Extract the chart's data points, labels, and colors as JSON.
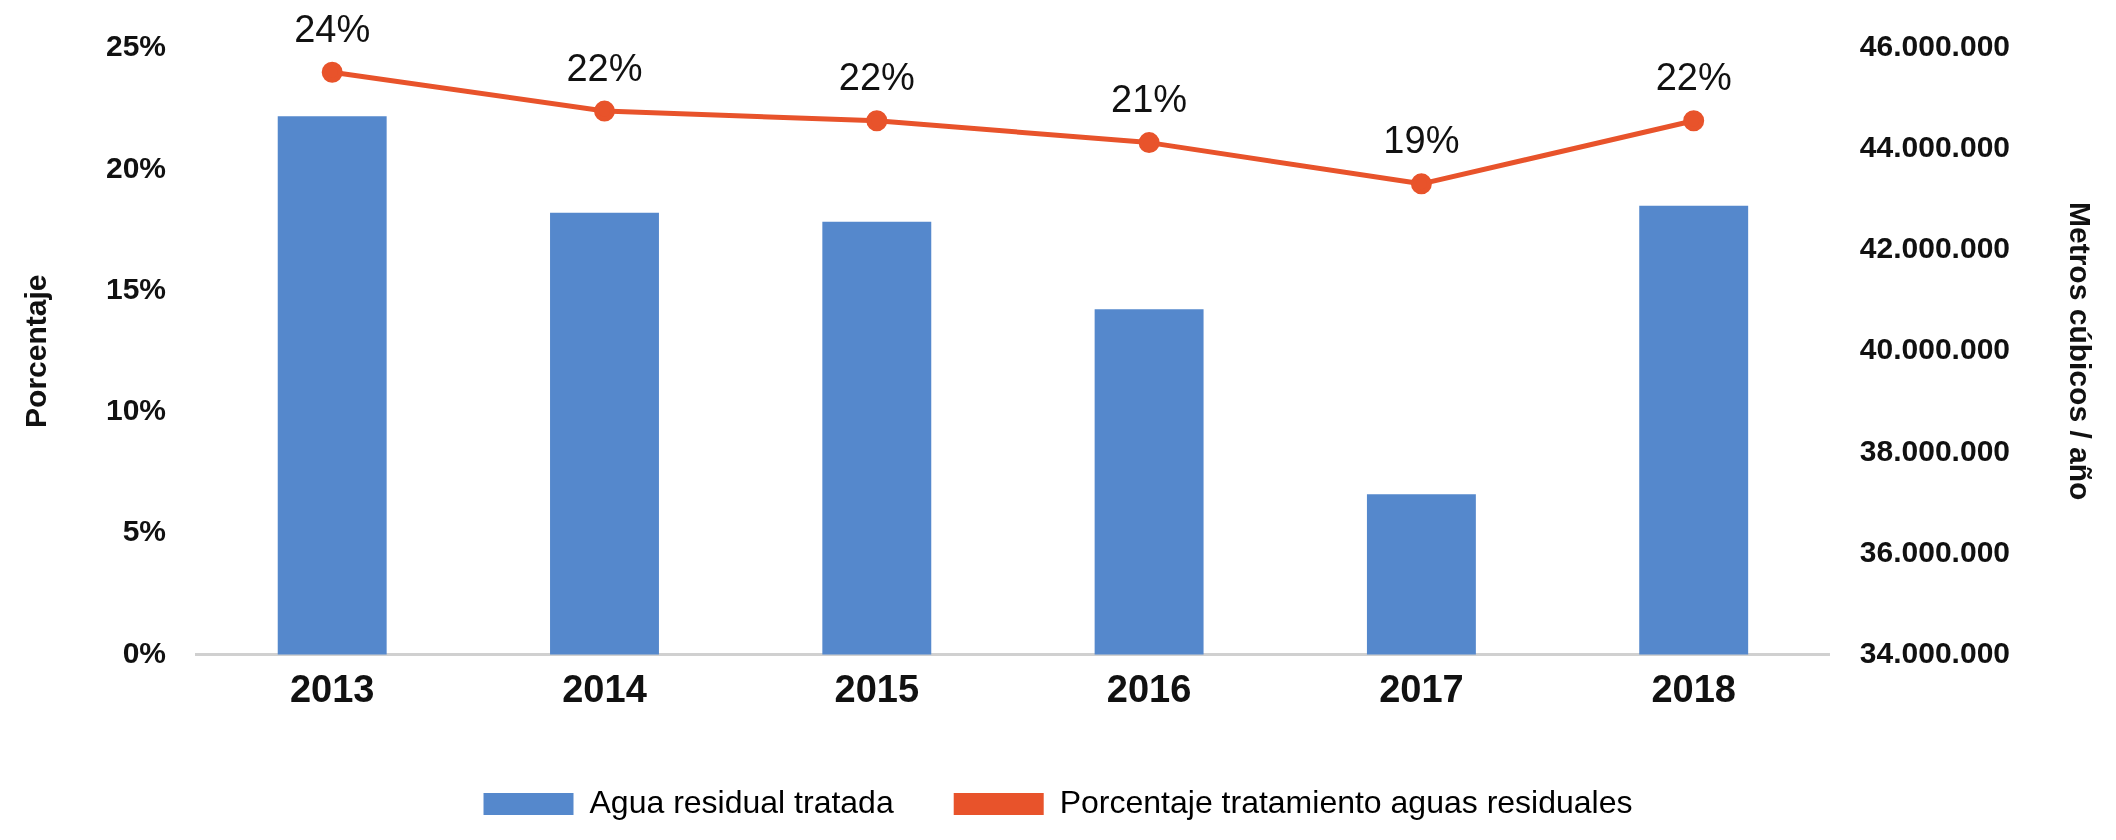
{
  "chart_data": {
    "type": "bar",
    "categories": [
      "2013",
      "2014",
      "2015",
      "2016",
      "2017",
      "2018"
    ],
    "series": [
      {
        "name": "Agua residual tratada",
        "axis": "y2",
        "color": "#5588cc",
        "values": [
          44650000,
          42740000,
          42560000,
          40830000,
          37170000,
          42880000
        ]
      },
      {
        "name": "Porcentaje tratamiento aguas residuales",
        "type": "line",
        "axis": "y",
        "color": "#e8532b",
        "marker": "circle",
        "values": [
          24.0,
          22.4,
          22.0,
          21.1,
          19.4,
          22.0
        ],
        "value_labels": [
          "24%",
          "22%",
          "22%",
          "21%",
          "19%",
          "22%"
        ]
      }
    ],
    "ylabel": "Porcentaje",
    "y2label": "Metros cúbicos / año",
    "ylim": [
      0,
      25
    ],
    "yticks": [
      {
        "value": 0,
        "label": "0%"
      },
      {
        "value": 5,
        "label": "5%"
      },
      {
        "value": 10,
        "label": "10%"
      },
      {
        "value": 15,
        "label": "15%"
      },
      {
        "value": 20,
        "label": "20%"
      },
      {
        "value": 25,
        "label": "25%"
      }
    ],
    "y2lim": [
      34000000,
      46000000
    ],
    "y2ticks": [
      {
        "value": 34000000,
        "label": "34.000.000"
      },
      {
        "value": 36000000,
        "label": "36.000.000"
      },
      {
        "value": 38000000,
        "label": "38.000.000"
      },
      {
        "value": 40000000,
        "label": "40.000.000"
      },
      {
        "value": 42000000,
        "label": "42.000.000"
      },
      {
        "value": 44000000,
        "label": "44.000.000"
      },
      {
        "value": 46000000,
        "label": "46.000.000"
      }
    ],
    "grid": false,
    "legend": "bottom"
  }
}
